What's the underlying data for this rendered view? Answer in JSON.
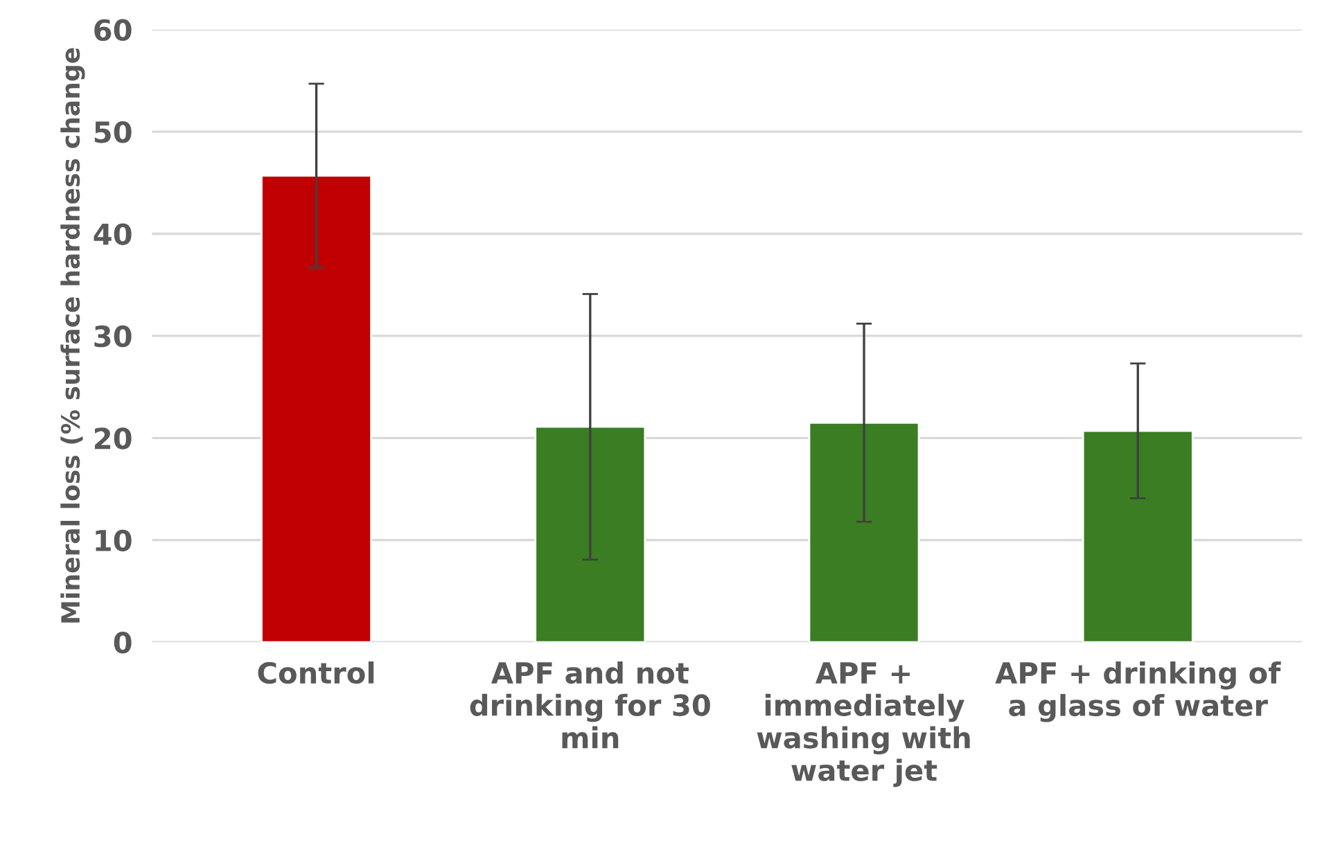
{
  "chart_data": {
    "type": "bar",
    "ylabel": "Mineral loss (% surface hardness change",
    "categories": [
      "Control",
      "APF and not\ndrinking for 30\nmin",
      "APF +\nimmediately\nwashing with\nwater jet",
      "APF + drinking of\na glass of water"
    ],
    "values": [
      45.7,
      21.1,
      21.5,
      20.7
    ],
    "colors": [
      "#c00000",
      "#3a7d22",
      "#3a7d22",
      "#3a7d22"
    ],
    "errors": [
      9,
      13,
      9.7,
      6.6
    ],
    "ylim": [
      0,
      60
    ],
    "yticks": [
      0,
      10,
      20,
      30,
      40,
      50,
      60
    ],
    "grid": "y"
  }
}
